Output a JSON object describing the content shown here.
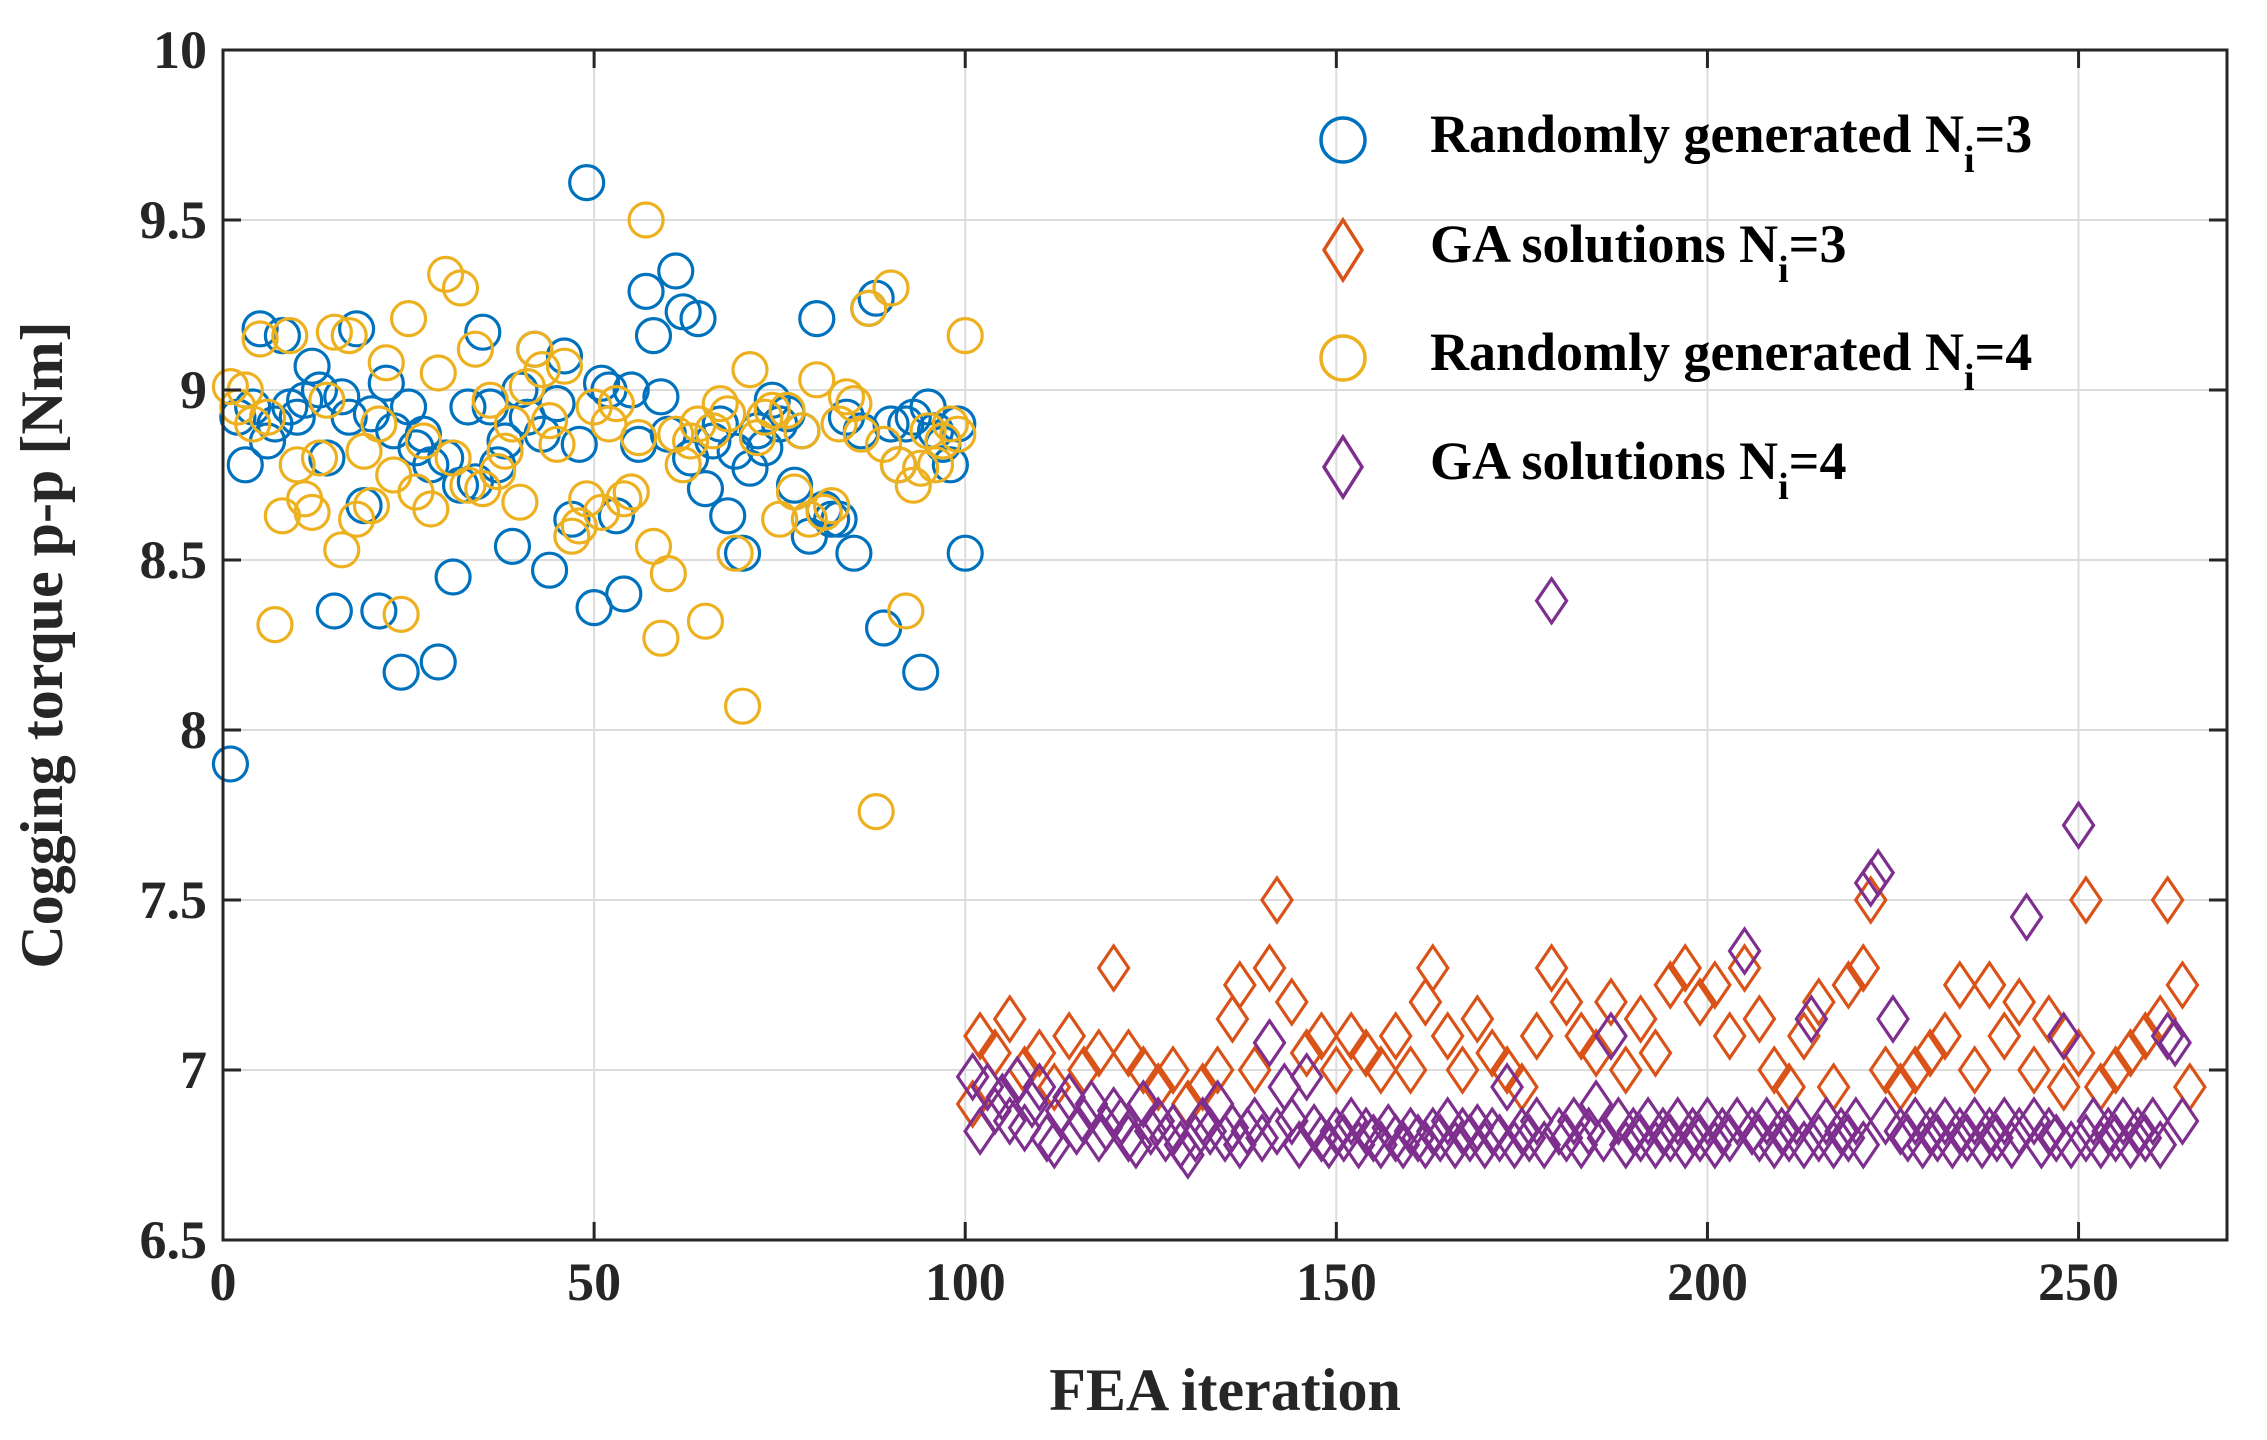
{
  "chart_data": {
    "type": "scatter",
    "title": "",
    "xlabel": "FEA iteration",
    "ylabel": "Cogging torque p-p [Nm]",
    "xlim": [
      0,
      270
    ],
    "ylim": [
      6.5,
      10
    ],
    "xticks": [
      0,
      50,
      100,
      150,
      200,
      250
    ],
    "yticks": [
      6.5,
      7,
      7.5,
      8,
      8.5,
      9,
      9.5,
      10
    ],
    "xtick_labels": [
      "0",
      "50",
      "100",
      "150",
      "200",
      "250"
    ],
    "ytick_labels": [
      "6.5",
      "7",
      "7.5",
      "8",
      "8.5",
      "9",
      "9.5",
      "10"
    ],
    "grid": true,
    "legend_position": "top-right",
    "series": [
      {
        "name": "Randomly generated Ni=3",
        "legend_main": "Randomly generated N",
        "legend_sub": "i",
        "legend_tail": "=3",
        "marker": "circle",
        "color": "#0072BD",
        "x": [
          1,
          2,
          3,
          4,
          5,
          6,
          7,
          8,
          9,
          10,
          11,
          12,
          13,
          14,
          15,
          16,
          17,
          18,
          19,
          20,
          21,
          22,
          23,
          24,
          25,
          26,
          27,
          28,
          29,
          30,
          31,
          32,
          33,
          34,
          35,
          36,
          37,
          38,
          39,
          40,
          41,
          42,
          43,
          44,
          45,
          46,
          47,
          48,
          49,
          50,
          51,
          52,
          53,
          54,
          55,
          56,
          57,
          58,
          59,
          60,
          61,
          62,
          63,
          64,
          65,
          66,
          67,
          68,
          69,
          70,
          71,
          72,
          73,
          74,
          75,
          76,
          77,
          78,
          79,
          80,
          81,
          82,
          83,
          84,
          85,
          86,
          87,
          88,
          89,
          90,
          91,
          92,
          93,
          94,
          95,
          96,
          97,
          98,
          99,
          100
        ],
        "y": [
          7.9,
          8.92,
          8.78,
          8.95,
          9.18,
          8.85,
          8.9,
          9.16,
          8.95,
          8.92,
          8.97,
          9.07,
          9.0,
          8.8,
          8.35,
          8.98,
          8.92,
          9.18,
          8.66,
          8.93,
          8.35,
          9.02,
          8.88,
          8.17,
          8.95,
          8.83,
          8.87,
          8.78,
          8.2,
          8.8,
          8.45,
          8.72,
          8.95,
          8.73,
          9.17,
          8.95,
          8.78,
          8.85,
          8.54,
          9.0,
          8.92,
          9.12,
          8.87,
          8.47,
          8.96,
          9.1,
          8.62,
          8.84,
          9.61,
          8.36,
          9.02,
          9.0,
          8.63,
          8.4,
          9.0,
          8.84,
          9.29,
          9.16,
          8.98,
          8.87,
          9.35,
          9.23,
          8.8,
          9.21,
          8.71,
          8.85,
          8.9,
          8.63,
          8.82,
          8.52,
          8.77,
          8.88,
          8.83,
          8.97,
          8.9,
          8.93,
          8.72,
          8.88,
          8.57,
          9.21,
          8.65,
          8.62,
          8.62,
          8.92,
          8.52,
          8.88,
          9.24,
          9.27,
          8.3,
          8.9,
          8.78,
          8.9,
          8.92,
          8.17,
          8.95,
          8.88,
          8.84,
          8.78,
          8.9,
          8.52
        ]
      },
      {
        "name": "GA solutions Ni=3",
        "legend_main": "GA solutions N",
        "legend_sub": "i",
        "legend_tail": "=3",
        "marker": "diamond",
        "color": "#D95319",
        "x": [
          101,
          102,
          104,
          106,
          108,
          110,
          112,
          114,
          116,
          118,
          120,
          122,
          124,
          126,
          128,
          130,
          132,
          134,
          136,
          137,
          139,
          141,
          142,
          144,
          146,
          148,
          150,
          152,
          154,
          156,
          158,
          160,
          162,
          163,
          165,
          167,
          169,
          171,
          173,
          175,
          177,
          179,
          181,
          183,
          185,
          187,
          189,
          191,
          193,
          195,
          197,
          199,
          201,
          203,
          205,
          207,
          209,
          211,
          213,
          215,
          217,
          219,
          221,
          222,
          224,
          226,
          228,
          230,
          232,
          234,
          236,
          238,
          240,
          242,
          244,
          246,
          248,
          250,
          251,
          253,
          255,
          257,
          259,
          261,
          262,
          264,
          265
        ],
        "y": [
          6.9,
          7.1,
          7.05,
          7.15,
          7.0,
          7.05,
          6.95,
          7.1,
          7.0,
          7.05,
          7.3,
          7.05,
          7.0,
          6.95,
          7.0,
          6.9,
          6.95,
          7.0,
          7.15,
          7.25,
          7.0,
          7.3,
          7.5,
          7.2,
          7.05,
          7.1,
          7.0,
          7.1,
          7.05,
          7.0,
          7.1,
          7.0,
          7.2,
          7.3,
          7.1,
          7.0,
          7.15,
          7.05,
          7.0,
          6.95,
          7.1,
          7.3,
          7.2,
          7.1,
          7.05,
          7.2,
          7.0,
          7.15,
          7.05,
          7.25,
          7.3,
          7.2,
          7.25,
          7.1,
          7.3,
          7.15,
          7.0,
          6.95,
          7.1,
          7.2,
          6.95,
          7.25,
          7.3,
          7.5,
          7.0,
          6.95,
          7.0,
          7.05,
          7.1,
          7.25,
          7.0,
          7.25,
          7.1,
          7.2,
          7.0,
          7.15,
          6.95,
          7.05,
          7.5,
          6.95,
          7.0,
          7.05,
          7.1,
          7.15,
          7.5,
          7.25,
          6.95
        ]
      },
      {
        "name": "Randomly generated Ni=4",
        "legend_main": "Randomly generated N",
        "legend_sub": "i",
        "legend_tail": "=4",
        "marker": "circle",
        "color": "#EDB120",
        "x": [
          1,
          2,
          3,
          4,
          5,
          6,
          7,
          8,
          9,
          10,
          11,
          12,
          13,
          14,
          15,
          16,
          17,
          18,
          19,
          20,
          21,
          22,
          23,
          24,
          25,
          26,
          27,
          28,
          29,
          30,
          31,
          32,
          33,
          34,
          35,
          36,
          37,
          38,
          39,
          40,
          41,
          42,
          43,
          44,
          45,
          46,
          47,
          48,
          49,
          50,
          51,
          52,
          53,
          54,
          55,
          56,
          57,
          58,
          59,
          60,
          61,
          62,
          63,
          64,
          65,
          66,
          67,
          68,
          69,
          70,
          71,
          72,
          73,
          74,
          75,
          76,
          77,
          78,
          79,
          80,
          81,
          82,
          83,
          84,
          85,
          86,
          87,
          88,
          89,
          90,
          91,
          92,
          93,
          94,
          95,
          96,
          97,
          98,
          99,
          100
        ],
        "y": [
          9.01,
          8.95,
          9.0,
          8.9,
          9.15,
          8.92,
          8.31,
          8.63,
          9.16,
          8.78,
          8.68,
          8.64,
          8.8,
          8.97,
          9.17,
          8.53,
          9.16,
          8.62,
          8.82,
          8.66,
          8.9,
          9.08,
          8.75,
          8.34,
          9.21,
          8.7,
          8.85,
          8.65,
          9.05,
          9.34,
          8.8,
          9.3,
          8.72,
          9.12,
          8.71,
          8.97,
          8.76,
          8.82,
          8.9,
          8.67,
          9.01,
          9.12,
          9.06,
          8.91,
          8.84,
          9.07,
          8.57,
          8.6,
          8.68,
          8.95,
          8.64,
          8.9,
          8.96,
          8.68,
          8.7,
          8.86,
          9.5,
          8.54,
          8.27,
          8.46,
          8.87,
          8.78,
          8.85,
          8.9,
          8.32,
          8.88,
          8.96,
          8.93,
          8.52,
          8.07,
          9.06,
          8.86,
          8.92,
          8.94,
          8.62,
          8.94,
          8.7,
          8.88,
          8.62,
          9.03,
          8.64,
          8.66,
          8.9,
          8.98,
          8.96,
          8.87,
          9.24,
          7.76,
          8.84,
          9.3,
          8.78,
          8.35,
          8.72,
          8.77,
          8.88,
          8.78,
          8.85,
          8.9,
          8.87,
          9.16
        ]
      },
      {
        "name": "GA solutions Ni=4",
        "legend_main": "GA solutions N",
        "legend_sub": "i",
        "legend_tail": "=4",
        "marker": "diamond",
        "color": "#7E2F8E",
        "x": [
          101,
          102,
          103,
          104,
          105,
          106,
          107,
          108,
          109,
          110,
          111,
          112,
          113,
          114,
          115,
          116,
          117,
          118,
          119,
          120,
          121,
          122,
          123,
          124,
          125,
          126,
          127,
          128,
          129,
          130,
          131,
          132,
          133,
          134,
          135,
          136,
          137,
          138,
          139,
          140,
          141,
          142,
          143,
          144,
          145,
          146,
          147,
          148,
          149,
          150,
          151,
          152,
          153,
          154,
          155,
          156,
          157,
          158,
          159,
          160,
          161,
          162,
          163,
          164,
          165,
          166,
          167,
          168,
          169,
          170,
          171,
          172,
          173,
          174,
          175,
          176,
          177,
          178,
          179,
          180,
          181,
          182,
          183,
          184,
          185,
          186,
          187,
          188,
          189,
          190,
          191,
          192,
          193,
          194,
          195,
          196,
          197,
          198,
          199,
          200,
          201,
          202,
          203,
          204,
          205,
          206,
          207,
          208,
          209,
          210,
          211,
          212,
          213,
          214,
          215,
          216,
          217,
          218,
          219,
          220,
          221,
          222,
          223,
          224,
          225,
          226,
          227,
          228,
          229,
          230,
          231,
          232,
          233,
          234,
          235,
          236,
          237,
          238,
          239,
          240,
          241,
          242,
          243,
          244,
          245,
          246,
          247,
          248,
          249,
          250,
          251,
          252,
          253,
          254,
          255,
          256,
          257,
          258,
          259,
          260,
          261,
          262,
          263,
          264
        ],
        "y": [
          6.98,
          6.82,
          6.95,
          6.88,
          6.92,
          6.85,
          6.97,
          6.83,
          6.9,
          6.95,
          6.8,
          6.78,
          6.88,
          6.92,
          6.82,
          6.85,
          6.9,
          6.8,
          6.83,
          6.88,
          6.85,
          6.8,
          6.78,
          6.9,
          6.82,
          6.85,
          6.8,
          6.83,
          6.78,
          6.75,
          6.8,
          6.85,
          6.82,
          6.9,
          6.8,
          6.83,
          6.78,
          6.82,
          6.85,
          6.8,
          7.08,
          6.82,
          6.95,
          6.85,
          6.78,
          6.98,
          6.83,
          6.8,
          6.78,
          6.82,
          6.8,
          6.85,
          6.78,
          6.82,
          6.8,
          6.78,
          6.83,
          6.8,
          6.78,
          6.82,
          6.8,
          6.78,
          6.82,
          6.8,
          6.85,
          6.78,
          6.82,
          6.8,
          6.83,
          6.78,
          6.82,
          6.8,
          6.95,
          6.78,
          6.82,
          6.8,
          6.85,
          6.78,
          8.38,
          6.82,
          6.8,
          6.85,
          6.78,
          6.82,
          6.9,
          6.8,
          7.1,
          6.85,
          6.78,
          6.82,
          6.8,
          6.85,
          6.78,
          6.82,
          6.8,
          6.85,
          6.78,
          6.82,
          6.8,
          6.85,
          6.78,
          6.82,
          6.8,
          6.85,
          7.35,
          6.82,
          6.8,
          6.85,
          6.78,
          6.82,
          6.8,
          6.85,
          6.78,
          7.15,
          6.8,
          6.85,
          6.78,
          6.82,
          6.8,
          6.85,
          6.78,
          7.55,
          7.58,
          6.85,
          7.15,
          6.82,
          6.8,
          6.85,
          6.78,
          6.82,
          6.8,
          6.85,
          6.78,
          6.82,
          6.8,
          6.85,
          6.78,
          6.82,
          6.8,
          6.85,
          6.78,
          6.82,
          7.45,
          6.85,
          6.78,
          6.82,
          6.8,
          7.1,
          6.78,
          7.72,
          6.8,
          6.85,
          6.78,
          6.82,
          6.8,
          6.85,
          6.78,
          6.82,
          6.8,
          6.85,
          6.78,
          7.1,
          7.08,
          6.85
        ]
      }
    ]
  }
}
